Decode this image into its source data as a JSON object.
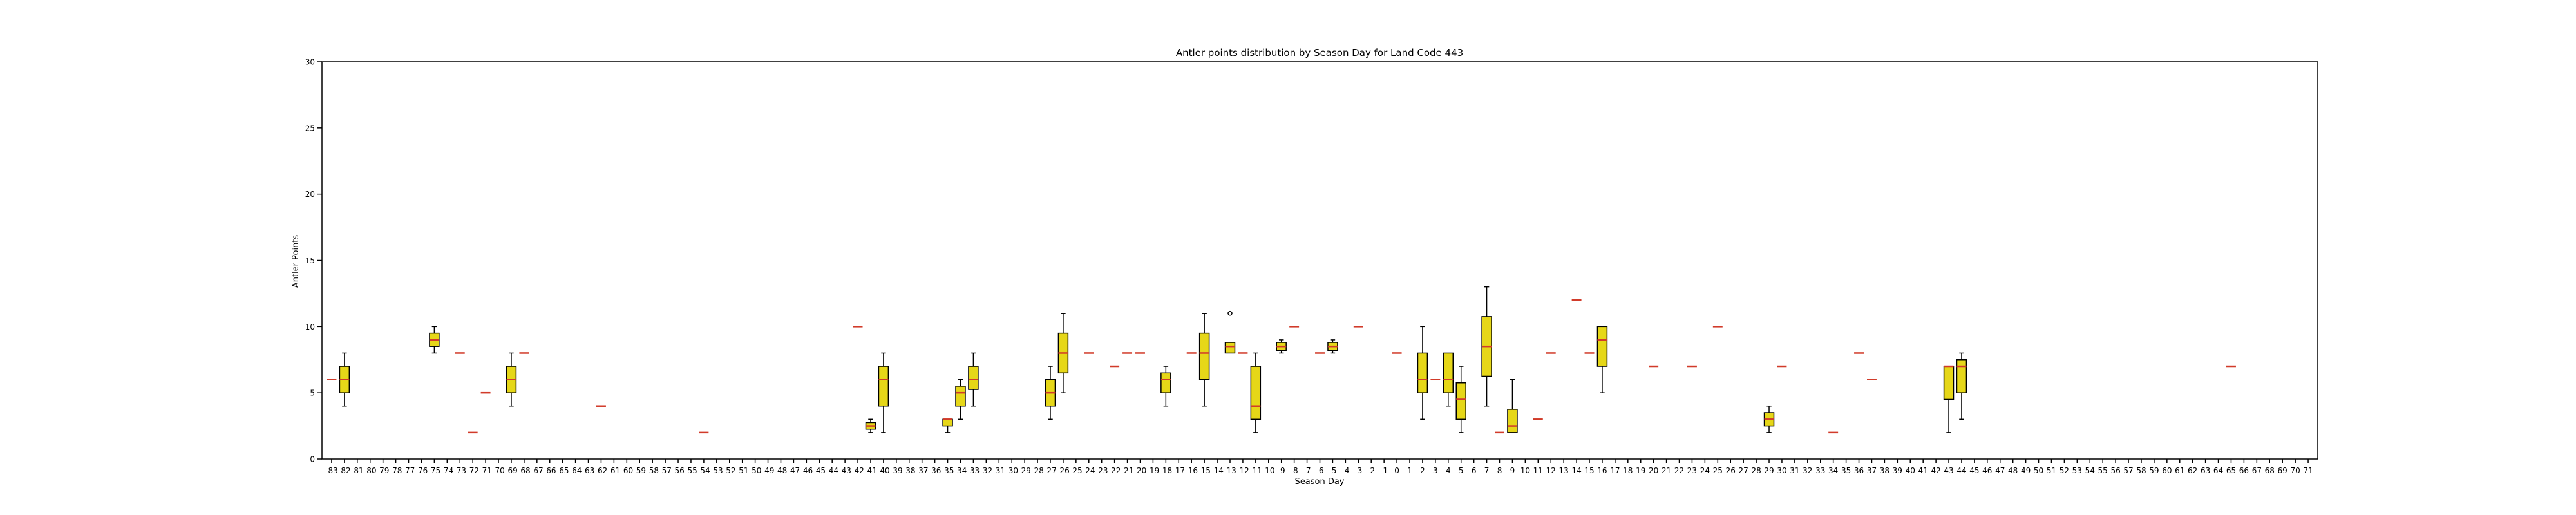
{
  "chart_data": {
    "type": "box",
    "title": "Antler points distribution by Season Day for Land Code 443",
    "xlabel": "Season Day",
    "ylabel": "Antler Points",
    "ylim": [
      0,
      30
    ],
    "yticks": [
      0,
      5,
      10,
      15,
      20,
      25,
      30
    ],
    "xrange": [
      -83,
      71
    ],
    "grid": false,
    "colors": {
      "box": "#e6d718",
      "median": "#d13b2a",
      "line": "#000000"
    },
    "boxes": [
      {
        "day": -83,
        "min": 6,
        "q1": 6,
        "median": 6,
        "q3": 6,
        "max": 6
      },
      {
        "day": -82,
        "min": 4,
        "q1": 5,
        "median": 6,
        "q3": 7,
        "max": 8
      },
      {
        "day": -75,
        "min": 8,
        "q1": 8.5,
        "median": 9,
        "q3": 9.5,
        "max": 10
      },
      {
        "day": -73,
        "min": 8,
        "q1": 8,
        "median": 8,
        "q3": 8,
        "max": 8
      },
      {
        "day": -72,
        "min": 2,
        "q1": 2,
        "median": 2,
        "q3": 2,
        "max": 2
      },
      {
        "day": -71,
        "min": 5,
        "q1": 5,
        "median": 5,
        "q3": 5,
        "max": 5
      },
      {
        "day": -69,
        "min": 4,
        "q1": 5,
        "median": 6,
        "q3": 7,
        "max": 8
      },
      {
        "day": -68,
        "min": 8,
        "q1": 8,
        "median": 8,
        "q3": 8,
        "max": 8
      },
      {
        "day": -62,
        "min": 4,
        "q1": 4,
        "median": 4,
        "q3": 4,
        "max": 4
      },
      {
        "day": -54,
        "min": 2,
        "q1": 2,
        "median": 2,
        "q3": 2,
        "max": 2
      },
      {
        "day": -42,
        "min": 10,
        "q1": 10,
        "median": 10,
        "q3": 10,
        "max": 10
      },
      {
        "day": -41,
        "min": 2,
        "q1": 2.25,
        "median": 2.5,
        "q3": 2.75,
        "max": 3
      },
      {
        "day": -40,
        "min": 2,
        "q1": 4,
        "median": 6,
        "q3": 7,
        "max": 8
      },
      {
        "day": -35,
        "min": 2,
        "q1": 2.5,
        "median": 3,
        "q3": 3,
        "max": 3
      },
      {
        "day": -34,
        "min": 3,
        "q1": 4,
        "median": 5,
        "q3": 5.5,
        "max": 6
      },
      {
        "day": -33,
        "min": 4,
        "q1": 5.25,
        "median": 6,
        "q3": 7,
        "max": 8
      },
      {
        "day": -27,
        "min": 3,
        "q1": 4,
        "median": 5,
        "q3": 6,
        "max": 7
      },
      {
        "day": -26,
        "min": 5,
        "q1": 6.5,
        "median": 8,
        "q3": 9.5,
        "max": 11
      },
      {
        "day": -24,
        "min": 8,
        "q1": 8,
        "median": 8,
        "q3": 8,
        "max": 8
      },
      {
        "day": -22,
        "min": 7,
        "q1": 7,
        "median": 7,
        "q3": 7,
        "max": 7
      },
      {
        "day": -21,
        "min": 8,
        "q1": 8,
        "median": 8,
        "q3": 8,
        "max": 8
      },
      {
        "day": -20,
        "min": 8,
        "q1": 8,
        "median": 8,
        "q3": 8,
        "max": 8
      },
      {
        "day": -18,
        "min": 4,
        "q1": 5,
        "median": 6,
        "q3": 6.5,
        "max": 7
      },
      {
        "day": -16,
        "min": 8,
        "q1": 8,
        "median": 8,
        "q3": 8,
        "max": 8
      },
      {
        "day": -15,
        "min": 4,
        "q1": 6,
        "median": 8,
        "q3": 9.5,
        "max": 11
      },
      {
        "day": -13,
        "min": 8,
        "q1": 8,
        "median": 8.5,
        "q3": 8.8,
        "max": 8.8,
        "fliers": [
          11
        ]
      },
      {
        "day": -12,
        "min": 8,
        "q1": 8,
        "median": 8,
        "q3": 8,
        "max": 8
      },
      {
        "day": -11,
        "min": 2,
        "q1": 3,
        "median": 4,
        "q3": 7,
        "max": 8
      },
      {
        "day": -9,
        "min": 8,
        "q1": 8.2,
        "median": 8.5,
        "q3": 8.8,
        "max": 9
      },
      {
        "day": -8,
        "min": 10,
        "q1": 10,
        "median": 10,
        "q3": 10,
        "max": 10
      },
      {
        "day": -6,
        "min": 8,
        "q1": 8,
        "median": 8,
        "q3": 8,
        "max": 8
      },
      {
        "day": -5,
        "min": 8,
        "q1": 8.2,
        "median": 8.5,
        "q3": 8.8,
        "max": 9
      },
      {
        "day": -3,
        "min": 10,
        "q1": 10,
        "median": 10,
        "q3": 10,
        "max": 10
      },
      {
        "day": 0,
        "min": 8,
        "q1": 8,
        "median": 8,
        "q3": 8,
        "max": 8
      },
      {
        "day": 2,
        "min": 3,
        "q1": 5,
        "median": 6,
        "q3": 8,
        "max": 10
      },
      {
        "day": 3,
        "min": 6,
        "q1": 6,
        "median": 6,
        "q3": 6,
        "max": 6
      },
      {
        "day": 4,
        "min": 4,
        "q1": 5,
        "median": 6,
        "q3": 8,
        "max": 8
      },
      {
        "day": 5,
        "min": 2,
        "q1": 3,
        "median": 4.5,
        "q3": 5.75,
        "max": 7
      },
      {
        "day": 7,
        "min": 4,
        "q1": 6.25,
        "median": 8.5,
        "q3": 10.75,
        "max": 13
      },
      {
        "day": 8,
        "min": 2,
        "q1": 2,
        "median": 2,
        "q3": 2,
        "max": 2
      },
      {
        "day": 9,
        "min": 2,
        "q1": 2,
        "median": 2.5,
        "q3": 3.75,
        "max": 6
      },
      {
        "day": 11,
        "min": 3,
        "q1": 3,
        "median": 3,
        "q3": 3,
        "max": 3
      },
      {
        "day": 12,
        "min": 8,
        "q1": 8,
        "median": 8,
        "q3": 8,
        "max": 8
      },
      {
        "day": 14,
        "min": 12,
        "q1": 12,
        "median": 12,
        "q3": 12,
        "max": 12
      },
      {
        "day": 15,
        "min": 8,
        "q1": 8,
        "median": 8,
        "q3": 8,
        "max": 8
      },
      {
        "day": 16,
        "min": 5,
        "q1": 7,
        "median": 9,
        "q3": 10,
        "max": 10
      },
      {
        "day": 20,
        "min": 7,
        "q1": 7,
        "median": 7,
        "q3": 7,
        "max": 7
      },
      {
        "day": 23,
        "min": 7,
        "q1": 7,
        "median": 7,
        "q3": 7,
        "max": 7
      },
      {
        "day": 25,
        "min": 10,
        "q1": 10,
        "median": 10,
        "q3": 10,
        "max": 10
      },
      {
        "day": 29,
        "min": 2,
        "q1": 2.5,
        "median": 3,
        "q3": 3.5,
        "max": 4
      },
      {
        "day": 30,
        "min": 7,
        "q1": 7,
        "median": 7,
        "q3": 7,
        "max": 7
      },
      {
        "day": 34,
        "min": 2,
        "q1": 2,
        "median": 2,
        "q3": 2,
        "max": 2
      },
      {
        "day": 36,
        "min": 8,
        "q1": 8,
        "median": 8,
        "q3": 8,
        "max": 8
      },
      {
        "day": 37,
        "min": 6,
        "q1": 6,
        "median": 6,
        "q3": 6,
        "max": 6
      },
      {
        "day": 43,
        "min": 2,
        "q1": 4.5,
        "median": 7,
        "q3": 7,
        "max": 7
      },
      {
        "day": 44,
        "min": 3,
        "q1": 5,
        "median": 7,
        "q3": 7.5,
        "max": 8
      },
      {
        "day": 65,
        "min": 7,
        "q1": 7,
        "median": 7,
        "q3": 7,
        "max": 7
      }
    ]
  }
}
